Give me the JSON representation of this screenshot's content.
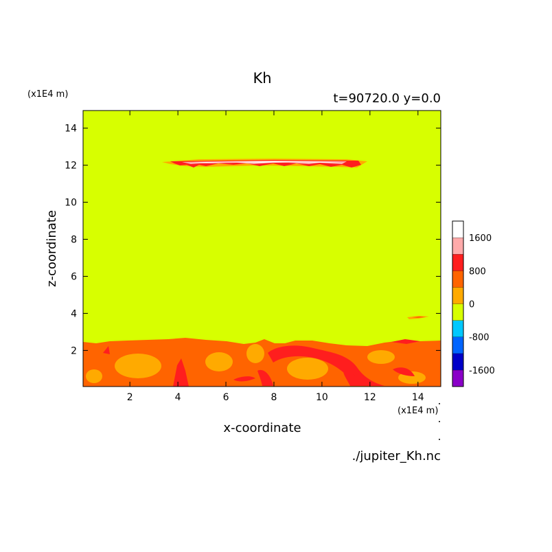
{
  "chart_data": {
    "type": "heatmap",
    "title": "Kh",
    "subtitle": "t=90720.0 y=0.0",
    "xlabel": "x-coordinate",
    "ylabel": "z-coordinate",
    "x_unit": "(x1E4 m)",
    "y_unit": "(x1E4 m)",
    "source_label": "./jupiter_Kh.nc",
    "xlim": [
      0.05,
      14.95
    ],
    "ylim": [
      0.05,
      14.95
    ],
    "x_ticks": [
      2,
      4,
      6,
      8,
      10,
      12,
      14
    ],
    "y_ticks": [
      2,
      4,
      6,
      8,
      10,
      12,
      14
    ],
    "colorbar": {
      "levels": [
        -2000,
        -1600,
        -1200,
        -800,
        -400,
        0,
        400,
        800,
        1200,
        1600,
        2000
      ],
      "tick_labels": [
        "1600",
        "800",
        "0",
        "-800",
        "-1600"
      ],
      "tick_values": [
        1600,
        800,
        0,
        -800,
        -1600
      ],
      "colors": [
        "#8a00c8",
        "#0000c8",
        "#0064ff",
        "#00c8ff",
        "#d7ff00",
        "#ffaa00",
        "#ff6400",
        "#ff1e1e",
        "#ffaaaa",
        "#ffffff"
      ]
    },
    "background_value_range": [
      0,
      400
    ],
    "features": [
      {
        "region": "near-surface turbulent layer",
        "x_range": [
          0.05,
          14.95
        ],
        "z_range": [
          0.05,
          2.5
        ],
        "value_range": [
          400,
          1600
        ]
      },
      {
        "region": "upper layer streak",
        "x_range": [
          3.3,
          11.8
        ],
        "z_range": [
          11.8,
          12.3
        ],
        "value_range": [
          800,
          2000
        ]
      },
      {
        "region": "small patch",
        "x_range": [
          13.0,
          14.0
        ],
        "z_range": [
          3.7,
          3.9
        ],
        "value_range": [
          400,
          800
        ]
      }
    ]
  }
}
